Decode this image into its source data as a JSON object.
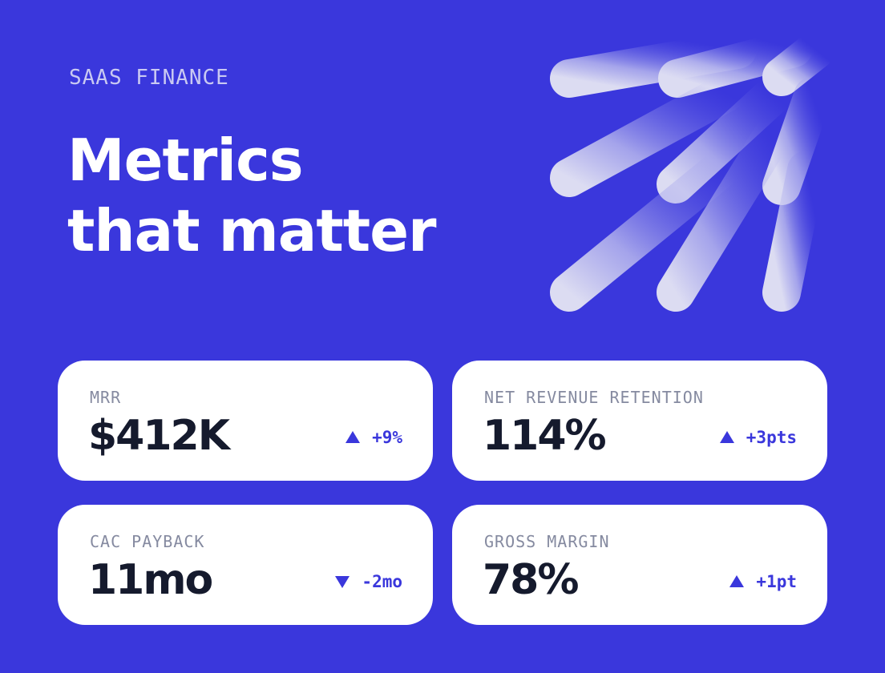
{
  "header": {
    "eyebrow": "SAAS FINANCE",
    "title": "Metrics that matter"
  },
  "cards": [
    {
      "label": "MRR",
      "value": "$412K",
      "change": "+9%"
    },
    {
      "label": "NET REVENUE RETENTION",
      "value": "114%",
      "change": "+3pts"
    },
    {
      "label": "CAC PAYBACK",
      "value": "11mo",
      "change": "-2mo"
    },
    {
      "label": "GROSS MARGIN",
      "value": "78%",
      "change": "+1pt"
    }
  ]
}
